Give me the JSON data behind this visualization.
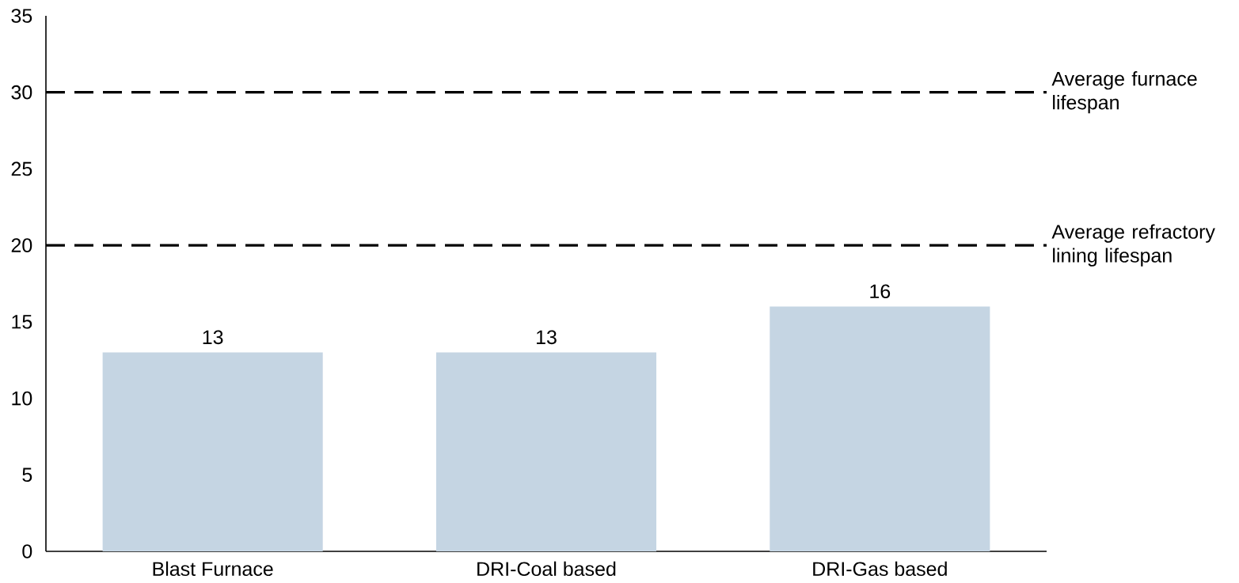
{
  "chart_data": {
    "type": "bar",
    "categories": [
      "Blast Furnace",
      "DRI-Coal based",
      "DRI-Gas based"
    ],
    "values": [
      13,
      13,
      16
    ],
    "color": "#c5d5e3",
    "ylim": [
      0,
      35
    ],
    "yticks": [
      0,
      5,
      10,
      15,
      20,
      25,
      30,
      35
    ],
    "data_labels": true,
    "ref_lines": [
      {
        "axis": "y",
        "value": 30,
        "label": "Average furnace lifespan",
        "color": "#000000",
        "line_style": "dashed"
      },
      {
        "axis": "y",
        "value": 20,
        "label": "Average refractory lining lifespan",
        "color": "#000000",
        "line_style": "dashed"
      }
    ]
  }
}
